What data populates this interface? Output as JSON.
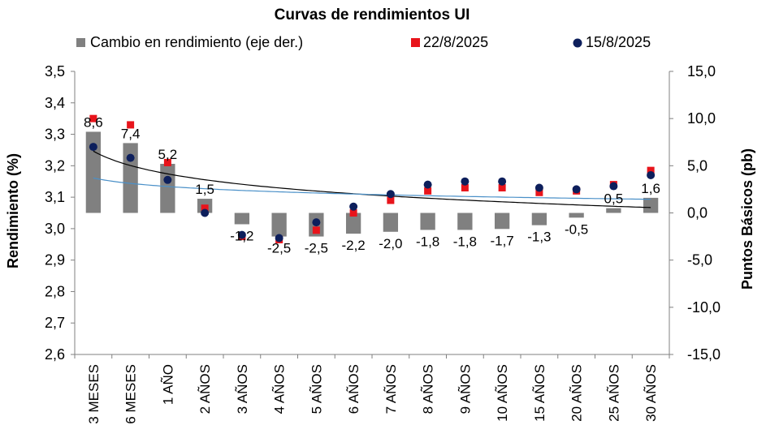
{
  "chart_data": {
    "type": "bar",
    "title": "Curvas de rendimientos UI",
    "categories": [
      "3 MESES",
      "6 MESES",
      "1 AÑO",
      "2 AÑOS",
      "3 AÑOS",
      "4 AÑOS",
      "5 AÑOS",
      "6 AÑOS",
      "7 AÑOS",
      "8 AÑOS",
      "9 AÑOS",
      "10 AÑOS",
      "15 AÑOS",
      "20 AÑOS",
      "25 AÑOS",
      "30 AÑOS"
    ],
    "ylabel": "Rendimiento (%)",
    "y2label": "Puntos Básicos (pb)",
    "ylim": [
      2.6,
      3.5
    ],
    "y2lim": [
      -15,
      15
    ],
    "yticks": [
      "2,6",
      "2,7",
      "2,8",
      "2,9",
      "3,0",
      "3,1",
      "3,2",
      "3,3",
      "3,4",
      "3,5"
    ],
    "y2ticks": [
      "-15,0",
      "-10,0",
      "-5,0",
      "0,0",
      "5,0",
      "10,0",
      "15,0"
    ],
    "legend_position": "top",
    "series": [
      {
        "name": "Cambio en rendimiento (eje der.)",
        "kind": "bar",
        "axis": "right",
        "color": "#808080",
        "values": [
          8.6,
          7.4,
          5.2,
          1.5,
          -1.2,
          -2.5,
          -2.5,
          -2.2,
          -2.0,
          -1.8,
          -1.8,
          -1.7,
          -1.3,
          -0.5,
          0.5,
          1.6
        ],
        "labels": [
          "8,6",
          "7,4",
          "5,2",
          "1,5",
          "-1,2",
          "-2,5",
          "-2,5",
          "-2,2",
          "-2,0",
          "-1,8",
          "-1,8",
          "-1,7",
          "-1,3",
          "-0,5",
          "0,5",
          "1,6"
        ]
      },
      {
        "name": "22/8/2025",
        "kind": "scatter",
        "marker": "square",
        "axis": "left",
        "color": "#e8141b",
        "values": [
          3.35,
          3.33,
          3.21,
          3.065,
          2.975,
          2.965,
          2.995,
          3.05,
          3.09,
          3.12,
          3.13,
          3.13,
          3.115,
          3.12,
          3.14,
          3.185
        ]
      },
      {
        "name": "15/8/2025",
        "kind": "scatter",
        "marker": "circle",
        "axis": "left",
        "color": "#0d1f5c",
        "values": [
          3.26,
          3.225,
          3.155,
          3.05,
          2.98,
          2.97,
          3.02,
          3.07,
          3.11,
          3.14,
          3.15,
          3.15,
          3.13,
          3.125,
          3.135,
          3.17
        ]
      }
    ],
    "trendlines": [
      {
        "series": "22/8/2025",
        "color": "#000000"
      },
      {
        "series": "15/8/2025",
        "color": "#4a90c8"
      }
    ]
  }
}
